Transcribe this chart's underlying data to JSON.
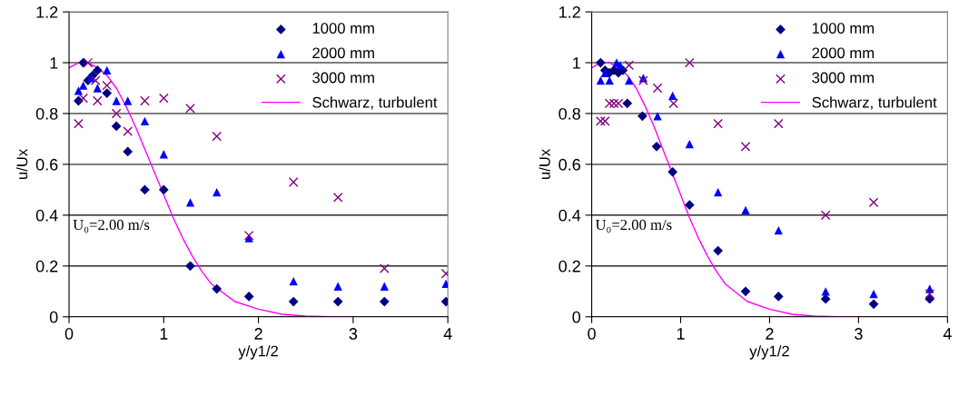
{
  "chart_data": [
    {
      "type": "scatter",
      "xlabel": "y/y1/2",
      "ylabel": "u/Ux",
      "xlim": [
        0,
        4
      ],
      "ylim": [
        0,
        1.2
      ],
      "xticks": [
        0,
        1,
        2,
        3,
        4
      ],
      "yticks": [
        0,
        0.2,
        0.4,
        0.6,
        0.8,
        1,
        1.2
      ],
      "grid": "y",
      "legend": "top right",
      "annotations": [
        "U₀=2.00 m/s"
      ],
      "series": [
        {
          "name": "1000 mm",
          "color": "#000080",
          "marker": "diamond",
          "x": [
            0.1,
            0.15,
            0.2,
            0.25,
            0.3,
            0.4,
            0.5,
            0.62,
            0.8,
            1.0,
            1.28,
            1.56,
            1.9,
            2.37,
            2.84,
            3.33,
            3.98
          ],
          "values": [
            0.85,
            1.0,
            0.93,
            0.95,
            0.97,
            0.88,
            0.75,
            0.65,
            0.5,
            0.5,
            0.2,
            0.11,
            0.08,
            0.06,
            0.06,
            0.06,
            0.06
          ]
        },
        {
          "name": "2000 mm",
          "color": "#0000ff",
          "marker": "triangle",
          "x": [
            0.1,
            0.15,
            0.23,
            0.3,
            0.4,
            0.5,
            0.62,
            0.8,
            1.0,
            1.28,
            1.56,
            1.9,
            2.37,
            2.84,
            3.33,
            3.98
          ],
          "values": [
            0.89,
            0.91,
            0.94,
            0.9,
            0.97,
            0.85,
            0.85,
            0.77,
            0.64,
            0.45,
            0.49,
            0.31,
            0.14,
            0.12,
            0.12,
            0.13
          ]
        },
        {
          "name": "3000 mm",
          "color": "#800080",
          "marker": "cross",
          "x": [
            0.1,
            0.15,
            0.2,
            0.28,
            0.3,
            0.4,
            0.5,
            0.62,
            0.8,
            1.0,
            1.28,
            1.56,
            1.9,
            2.37,
            2.84,
            3.33,
            3.98
          ],
          "values": [
            0.76,
            0.86,
            1.0,
            0.93,
            0.85,
            0.91,
            0.8,
            0.73,
            0.85,
            0.86,
            0.82,
            0.71,
            0.32,
            0.53,
            0.47,
            0.19,
            0.17
          ]
        },
        {
          "name": "Schwarz, turbulent",
          "type": "line",
          "color": "#ff00ff",
          "marker": "none",
          "x": [
            0,
            0.1,
            0.2,
            0.3,
            0.4,
            0.5,
            0.6,
            0.7,
            0.8,
            0.9,
            1.0,
            1.1,
            1.2,
            1.3,
            1.4,
            1.5,
            1.75,
            2.0,
            2.25,
            2.5,
            2.75,
            3.0
          ],
          "values": [
            0.98,
            1.0,
            1.0,
            0.98,
            0.95,
            0.9,
            0.83,
            0.75,
            0.66,
            0.57,
            0.48,
            0.39,
            0.31,
            0.24,
            0.18,
            0.13,
            0.06,
            0.03,
            0.01,
            0.003,
            0,
            0
          ]
        }
      ]
    },
    {
      "type": "scatter",
      "xlabel": "y/y1/2",
      "ylabel": "u/Ux",
      "xlim": [
        0,
        4
      ],
      "ylim": [
        0,
        1.2
      ],
      "xticks": [
        0,
        1,
        2,
        3,
        4
      ],
      "yticks": [
        0,
        0.2,
        0.4,
        0.6,
        0.8,
        1,
        1.2
      ],
      "grid": "y",
      "legend": "top right",
      "annotations": [
        "U₀=2.00 m/s"
      ],
      "series": [
        {
          "name": "1000 mm",
          "color": "#000080",
          "marker": "diamond",
          "x": [
            0.1,
            0.15,
            0.2,
            0.25,
            0.3,
            0.35,
            0.4,
            0.57,
            0.73,
            0.91,
            1.1,
            1.42,
            1.73,
            2.1,
            2.63,
            3.17,
            3.8
          ],
          "values": [
            1.0,
            0.97,
            0.96,
            0.97,
            0.96,
            0.97,
            0.84,
            0.79,
            0.67,
            0.57,
            0.44,
            0.26,
            0.1,
            0.08,
            0.07,
            0.05,
            0.07
          ]
        },
        {
          "name": "2000 mm",
          "color": "#0000ff",
          "marker": "triangle",
          "x": [
            0.1,
            0.15,
            0.2,
            0.28,
            0.32,
            0.42,
            0.58,
            0.74,
            0.91,
            1.1,
            1.42,
            1.73,
            2.1,
            2.63,
            3.17,
            3.8
          ],
          "values": [
            0.93,
            0.96,
            0.93,
            1.0,
            0.99,
            0.93,
            0.94,
            0.79,
            0.87,
            0.68,
            0.49,
            0.42,
            0.34,
            0.1,
            0.09,
            0.11
          ]
        },
        {
          "name": "3000 mm",
          "color": "#800080",
          "marker": "cross",
          "x": [
            0.1,
            0.15,
            0.2,
            0.25,
            0.3,
            0.42,
            0.58,
            0.74,
            0.92,
            1.1,
            1.42,
            1.73,
            2.1,
            2.63,
            3.17,
            3.8
          ],
          "values": [
            0.77,
            0.77,
            0.84,
            0.84,
            0.84,
            0.99,
            0.93,
            0.9,
            0.84,
            1.0,
            0.76,
            0.67,
            0.76,
            0.4,
            0.45,
            0.09
          ]
        },
        {
          "name": "Schwarz, turbulent",
          "type": "line",
          "color": "#ff00ff",
          "marker": "none",
          "x": [
            0,
            0.1,
            0.2,
            0.3,
            0.4,
            0.5,
            0.6,
            0.7,
            0.8,
            0.9,
            1.0,
            1.1,
            1.2,
            1.3,
            1.4,
            1.5,
            1.75,
            2.0,
            2.25,
            2.5,
            2.75,
            3.0
          ],
          "values": [
            0.98,
            1.0,
            1.0,
            0.98,
            0.95,
            0.9,
            0.83,
            0.75,
            0.66,
            0.57,
            0.48,
            0.39,
            0.31,
            0.24,
            0.18,
            0.13,
            0.06,
            0.03,
            0.01,
            0.003,
            0,
            0
          ]
        }
      ]
    }
  ]
}
